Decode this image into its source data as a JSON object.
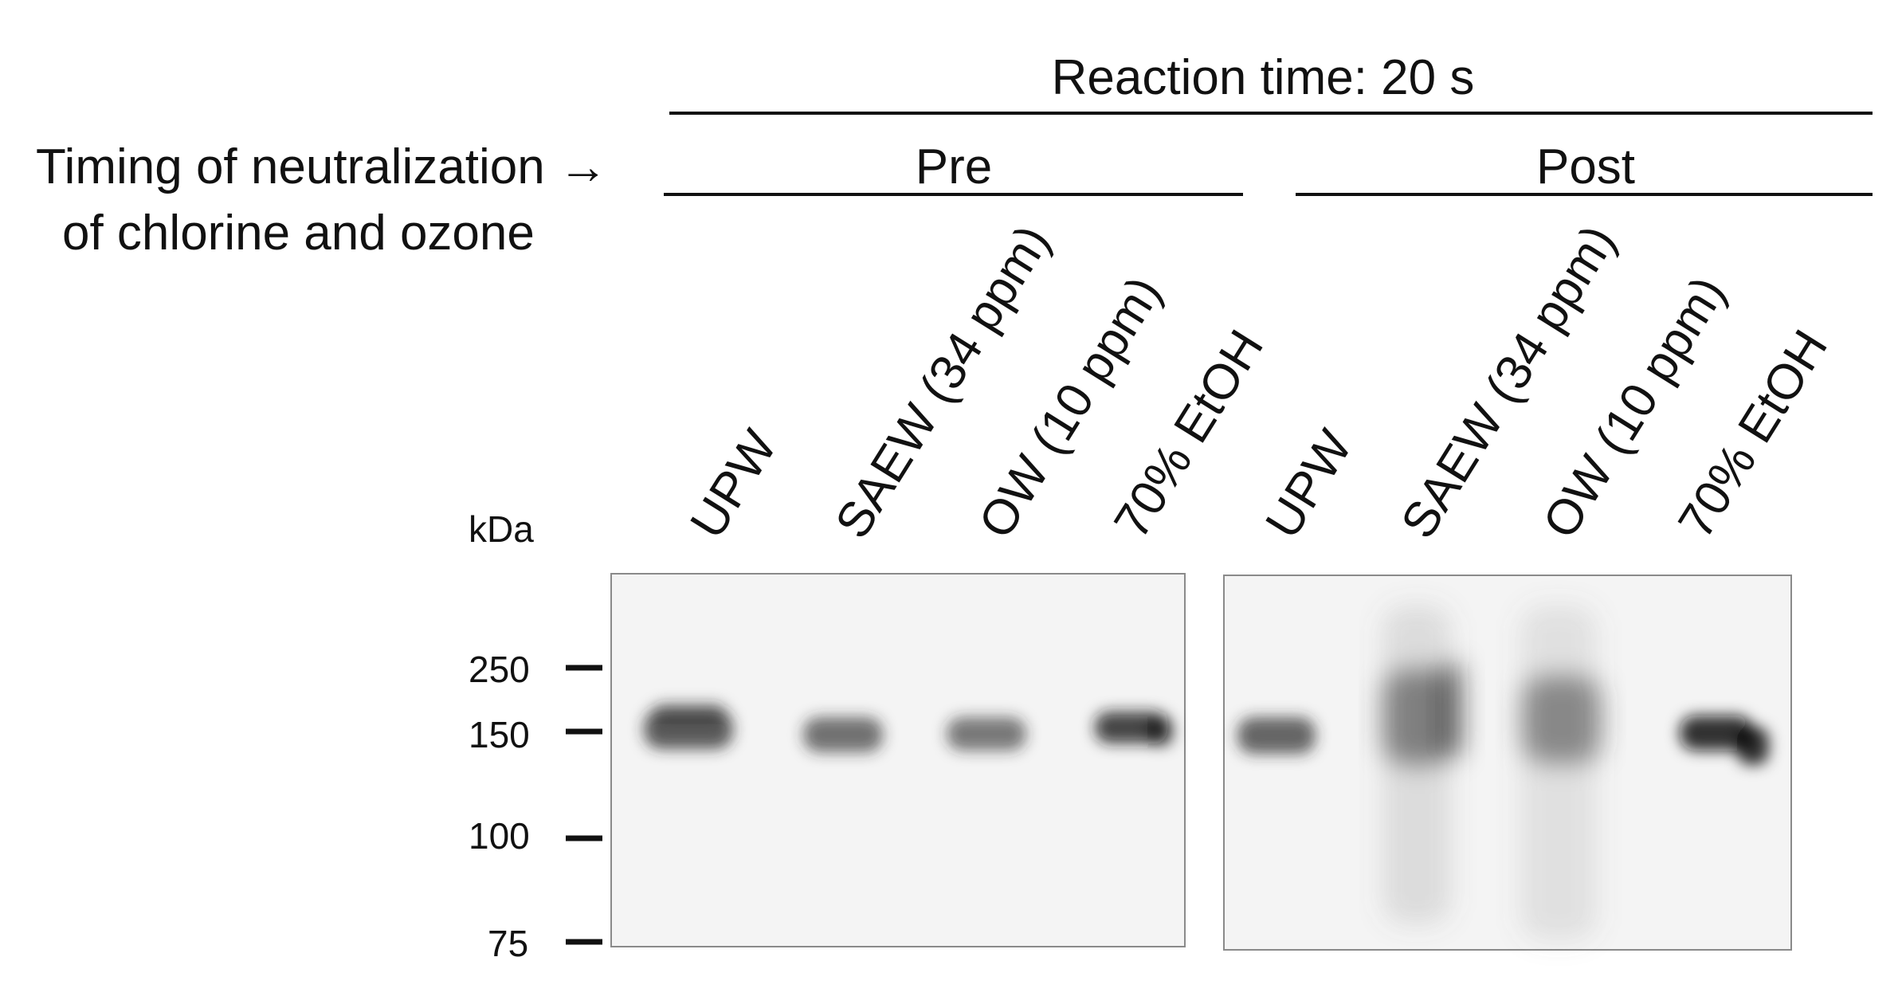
{
  "figure": {
    "reaction_time": "Reaction time: 20 s",
    "timing_label_line1": "Timing of neutralization →",
    "timing_label_line2": "of chlorine and ozone",
    "groups": [
      "Pre",
      "Post"
    ],
    "lanes": [
      "UPW",
      "SAEW (34 ppm)",
      "OW (10 ppm)",
      "70% EtOH",
      "UPW",
      "SAEW (34 ppm)",
      "OW (10 ppm)",
      "70% EtOH"
    ],
    "kda_label": "kDa",
    "markers": [
      "250",
      "150",
      "100",
      "75"
    ]
  }
}
